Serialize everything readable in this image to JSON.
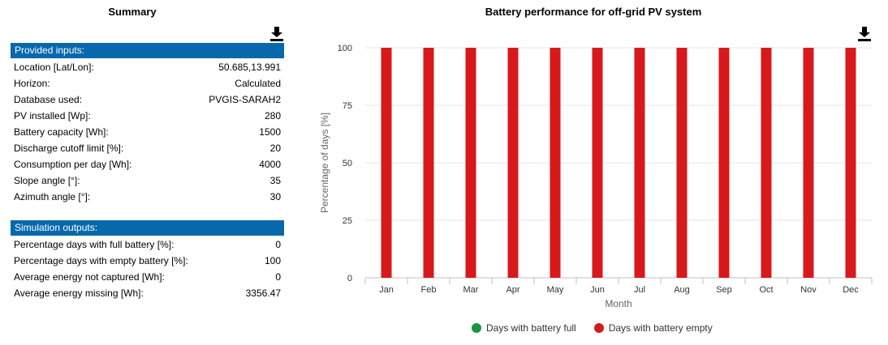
{
  "summary": {
    "title": "Summary",
    "inputs_header": "Provided inputs:",
    "inputs": [
      {
        "label": "Location [Lat/Lon]:",
        "value": "50.685,13.991"
      },
      {
        "label": "Horizon:",
        "value": "Calculated"
      },
      {
        "label": "Database used:",
        "value": "PVGIS-SARAH2"
      },
      {
        "label": "PV installed [Wp]:",
        "value": "280"
      },
      {
        "label": "Battery capacity [Wh]:",
        "value": "1500"
      },
      {
        "label": "Discharge cutoff limit [%]:",
        "value": "20"
      },
      {
        "label": "Consumption per day [Wh]:",
        "value": "4000"
      },
      {
        "label": "Slope angle [°]:",
        "value": "35"
      },
      {
        "label": "Azimuth angle [°]:",
        "value": "30"
      }
    ],
    "outputs_header": "Simulation outputs:",
    "outputs": [
      {
        "label": "Percentage days with full battery [%]:",
        "value": "0"
      },
      {
        "label": "Percentage days with empty battery [%]:",
        "value": "100"
      },
      {
        "label": "Average energy not captured [Wh]:",
        "value": "0"
      },
      {
        "label": "Average energy missing [Wh]:",
        "value": "3356.47"
      }
    ]
  },
  "icons": {
    "download": "download-icon"
  },
  "colors": {
    "header_bg": "#0868ac",
    "full": "#1a9641",
    "empty": "#d7191c"
  },
  "chart_data": {
    "type": "bar",
    "title": "Battery performance for off-grid PV system",
    "xlabel": "Month",
    "ylabel": "Percentage of days [%]",
    "categories": [
      "Jan",
      "Feb",
      "Mar",
      "Apr",
      "May",
      "Jun",
      "Jul",
      "Aug",
      "Sep",
      "Oct",
      "Nov",
      "Dec"
    ],
    "series": [
      {
        "name": "Days with battery full",
        "values": [
          0,
          0,
          0,
          0,
          0,
          0,
          0,
          0,
          0,
          0,
          0,
          0
        ]
      },
      {
        "name": "Days with battery empty",
        "values": [
          100,
          100,
          100,
          100,
          100,
          100,
          100,
          100,
          100,
          100,
          100,
          100
        ]
      }
    ],
    "ylim": [
      0,
      100
    ],
    "yticks": [
      0,
      25,
      50,
      75,
      100
    ],
    "grid": true,
    "legend": "bottom"
  }
}
